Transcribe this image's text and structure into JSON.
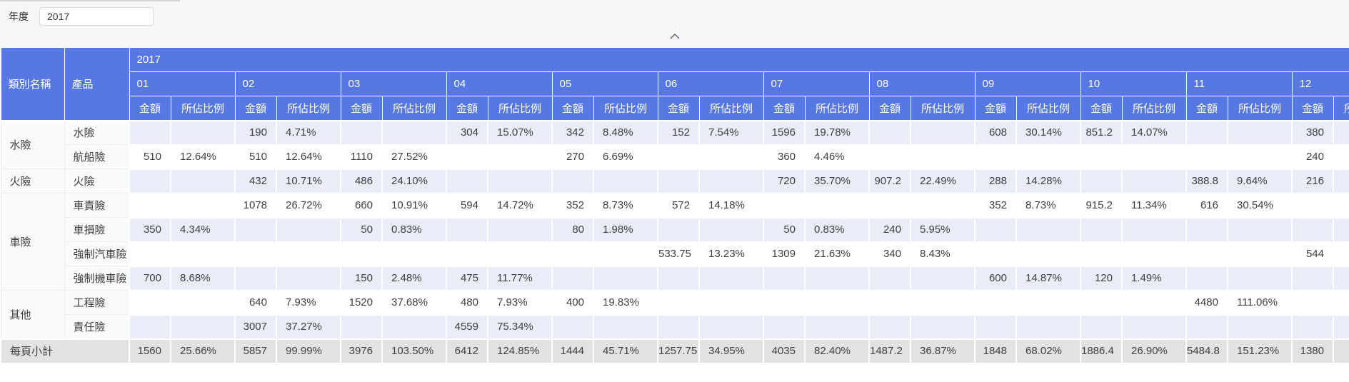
{
  "filters": {
    "year_label": "年度",
    "year_value": "2017"
  },
  "collapse": {
    "icon": "chevron-up"
  },
  "colors": {
    "header_blue": "#5778e2",
    "stripe_lavender": "#eaedf8",
    "subtotal_gray": "#e2e2e2",
    "label_cell_gray": "#fafafa",
    "top_bar_bg": "#f5f6f8"
  },
  "table": {
    "year_header": "2017",
    "col_category": "類別名稱",
    "col_product": "產品",
    "sub_amount": "金額",
    "sub_ratio": "所佔比例",
    "months": [
      "01",
      "02",
      "03",
      "04",
      "05",
      "06",
      "07",
      "08",
      "09",
      "10",
      "11",
      "12"
    ],
    "groups": [
      {
        "category": "水險",
        "products": [
          {
            "name": "水險",
            "cells": {
              "02": [
                "190",
                "4.71%"
              ],
              "04": [
                "304",
                "15.07%"
              ],
              "05": [
                "342",
                "8.48%"
              ],
              "06": [
                "152",
                "7.54%"
              ],
              "07": [
                "1596",
                "19.78%"
              ],
              "09": [
                "608",
                "30.14%"
              ],
              "10": [
                "851.2",
                "14.07%"
              ],
              "12": [
                "380",
                ""
              ]
            }
          },
          {
            "name": "航船險",
            "cells": {
              "01": [
                "510",
                "12.64%"
              ],
              "02": [
                "510",
                "12.64%"
              ],
              "03": [
                "1110",
                "27.52%"
              ],
              "05": [
                "270",
                "6.69%"
              ],
              "07": [
                "360",
                "4.46%"
              ],
              "12": [
                "240",
                ""
              ]
            }
          }
        ]
      },
      {
        "category": "火險",
        "products": [
          {
            "name": "火險",
            "cells": {
              "02": [
                "432",
                "10.71%"
              ],
              "03": [
                "486",
                "24.10%"
              ],
              "07": [
                "720",
                "35.70%"
              ],
              "08": [
                "907.2",
                "22.49%"
              ],
              "09": [
                "288",
                "14.28%"
              ],
              "11": [
                "388.8",
                "9.64%"
              ],
              "12": [
                "216",
                ""
              ]
            }
          }
        ]
      },
      {
        "category": "車險",
        "products": [
          {
            "name": "車責險",
            "cells": {
              "02": [
                "1078",
                "26.72%"
              ],
              "03": [
                "660",
                "10.91%"
              ],
              "04": [
                "594",
                "14.72%"
              ],
              "05": [
                "352",
                "8.73%"
              ],
              "06": [
                "572",
                "14.18%"
              ],
              "09": [
                "352",
                "8.73%"
              ],
              "10": [
                "915.2",
                "11.34%"
              ],
              "11": [
                "616",
                "30.54%"
              ]
            }
          },
          {
            "name": "車損險",
            "cells": {
              "01": [
                "350",
                "4.34%"
              ],
              "03": [
                "50",
                "0.83%"
              ],
              "05": [
                "80",
                "1.98%"
              ],
              "07": [
                "50",
                "0.83%"
              ],
              "08": [
                "240",
                "5.95%"
              ]
            }
          },
          {
            "name": "強制汽車險",
            "cells": {
              "06": [
                "533.75",
                "13.23%"
              ],
              "07": [
                "1309",
                "21.63%"
              ],
              "08": [
                "340",
                "8.43%"
              ],
              "12": [
                "544",
                ""
              ]
            }
          },
          {
            "name": "強制機車險",
            "cells": {
              "01": [
                "700",
                "8.68%"
              ],
              "03": [
                "150",
                "2.48%"
              ],
              "04": [
                "475",
                "11.77%"
              ],
              "09": [
                "600",
                "14.87%"
              ],
              "10": [
                "120",
                "1.49%"
              ]
            }
          }
        ]
      },
      {
        "category": "其他",
        "products": [
          {
            "name": "工程險",
            "cells": {
              "02": [
                "640",
                "7.93%"
              ],
              "03": [
                "1520",
                "37.68%"
              ],
              "04": [
                "480",
                "7.93%"
              ],
              "05": [
                "400",
                "19.83%"
              ],
              "11": [
                "4480",
                "111.06%"
              ]
            }
          },
          {
            "name": "責任險",
            "cells": {
              "02": [
                "3007",
                "37.27%"
              ],
              "04": [
                "4559",
                "75.34%"
              ]
            }
          }
        ]
      }
    ],
    "subtotal": {
      "label": "每頁小計",
      "cells": {
        "01": [
          "1560",
          "25.66%"
        ],
        "02": [
          "5857",
          "99.99%"
        ],
        "03": [
          "3976",
          "103.50%"
        ],
        "04": [
          "6412",
          "124.85%"
        ],
        "05": [
          "1444",
          "45.71%"
        ],
        "06": [
          "1257.75",
          "34.95%"
        ],
        "07": [
          "4035",
          "82.40%"
        ],
        "08": [
          "1487.2",
          "36.87%"
        ],
        "09": [
          "1848",
          "68.02%"
        ],
        "10": [
          "1886.4",
          "26.90%"
        ],
        "11": [
          "5484.8",
          "151.23%"
        ],
        "12": [
          "1380",
          ""
        ]
      }
    }
  }
}
